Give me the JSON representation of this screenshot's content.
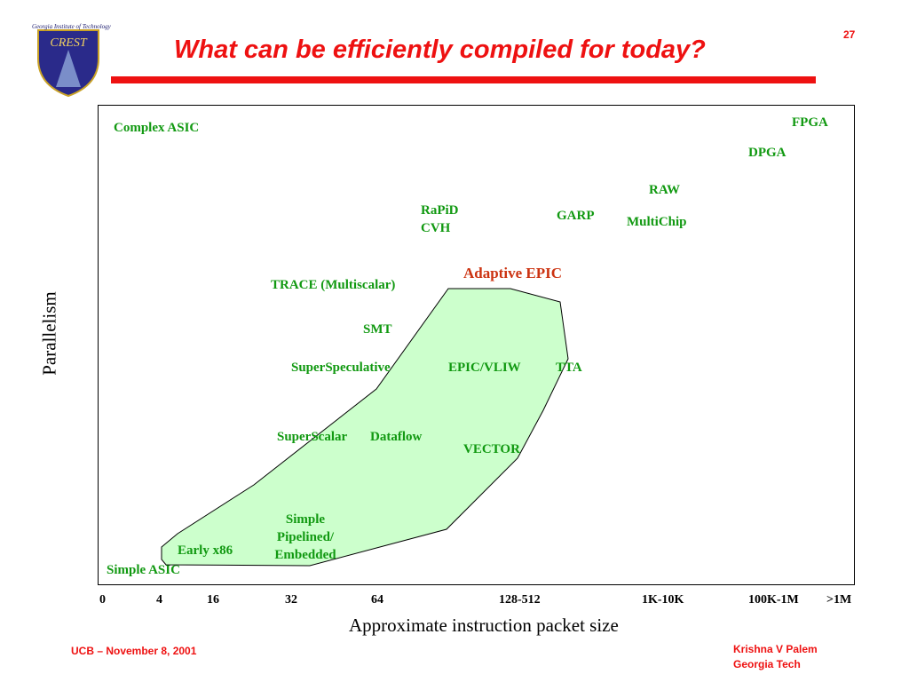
{
  "header": {
    "title": "What can be efficiently compiled for today?",
    "slide_number": "27",
    "logo_caption": "Georgia Institute of Technology",
    "logo_text": "CREST"
  },
  "axes": {
    "ylabel": "Parallelism",
    "xlabel": "Approximate instruction packet size",
    "x_ticks": [
      "0",
      "4",
      "16",
      "32",
      "64",
      "128-512",
      "1K-10K",
      "100K-1M",
      ">1M"
    ]
  },
  "labels": {
    "complex_asic": "Complex ASIC",
    "fpga": "FPGA",
    "dpga": "DPGA",
    "raw": "RAW",
    "rapid": "RaPiD",
    "cvh": "CVH",
    "garp": "GARP",
    "multichip": "MultiChip",
    "adaptive_epic": "Adaptive EPIC",
    "trace": "TRACE (Multiscalar)",
    "smt": "SMT",
    "superspeculative": "SuperSpeculative",
    "epic_vliw": "EPIC/VLIW",
    "tta": "TTA",
    "superscalar": "SuperScalar",
    "dataflow": "Dataflow",
    "vector": "VECTOR",
    "simple_line1": "Simple",
    "simple_line2": "Pipelined/",
    "simple_line3": "Embedded",
    "early_x86": "Early x86",
    "simple_asic": "Simple ASIC"
  },
  "footer": {
    "left": "UCB – November 8, 2001",
    "right_line1": "Krishna V Palem",
    "right_line2": "Georgia Tech"
  },
  "colors": {
    "title": "#ee1111",
    "label_green": "#119911",
    "label_red": "#cc3311",
    "region_fill": "#ccffcc"
  }
}
